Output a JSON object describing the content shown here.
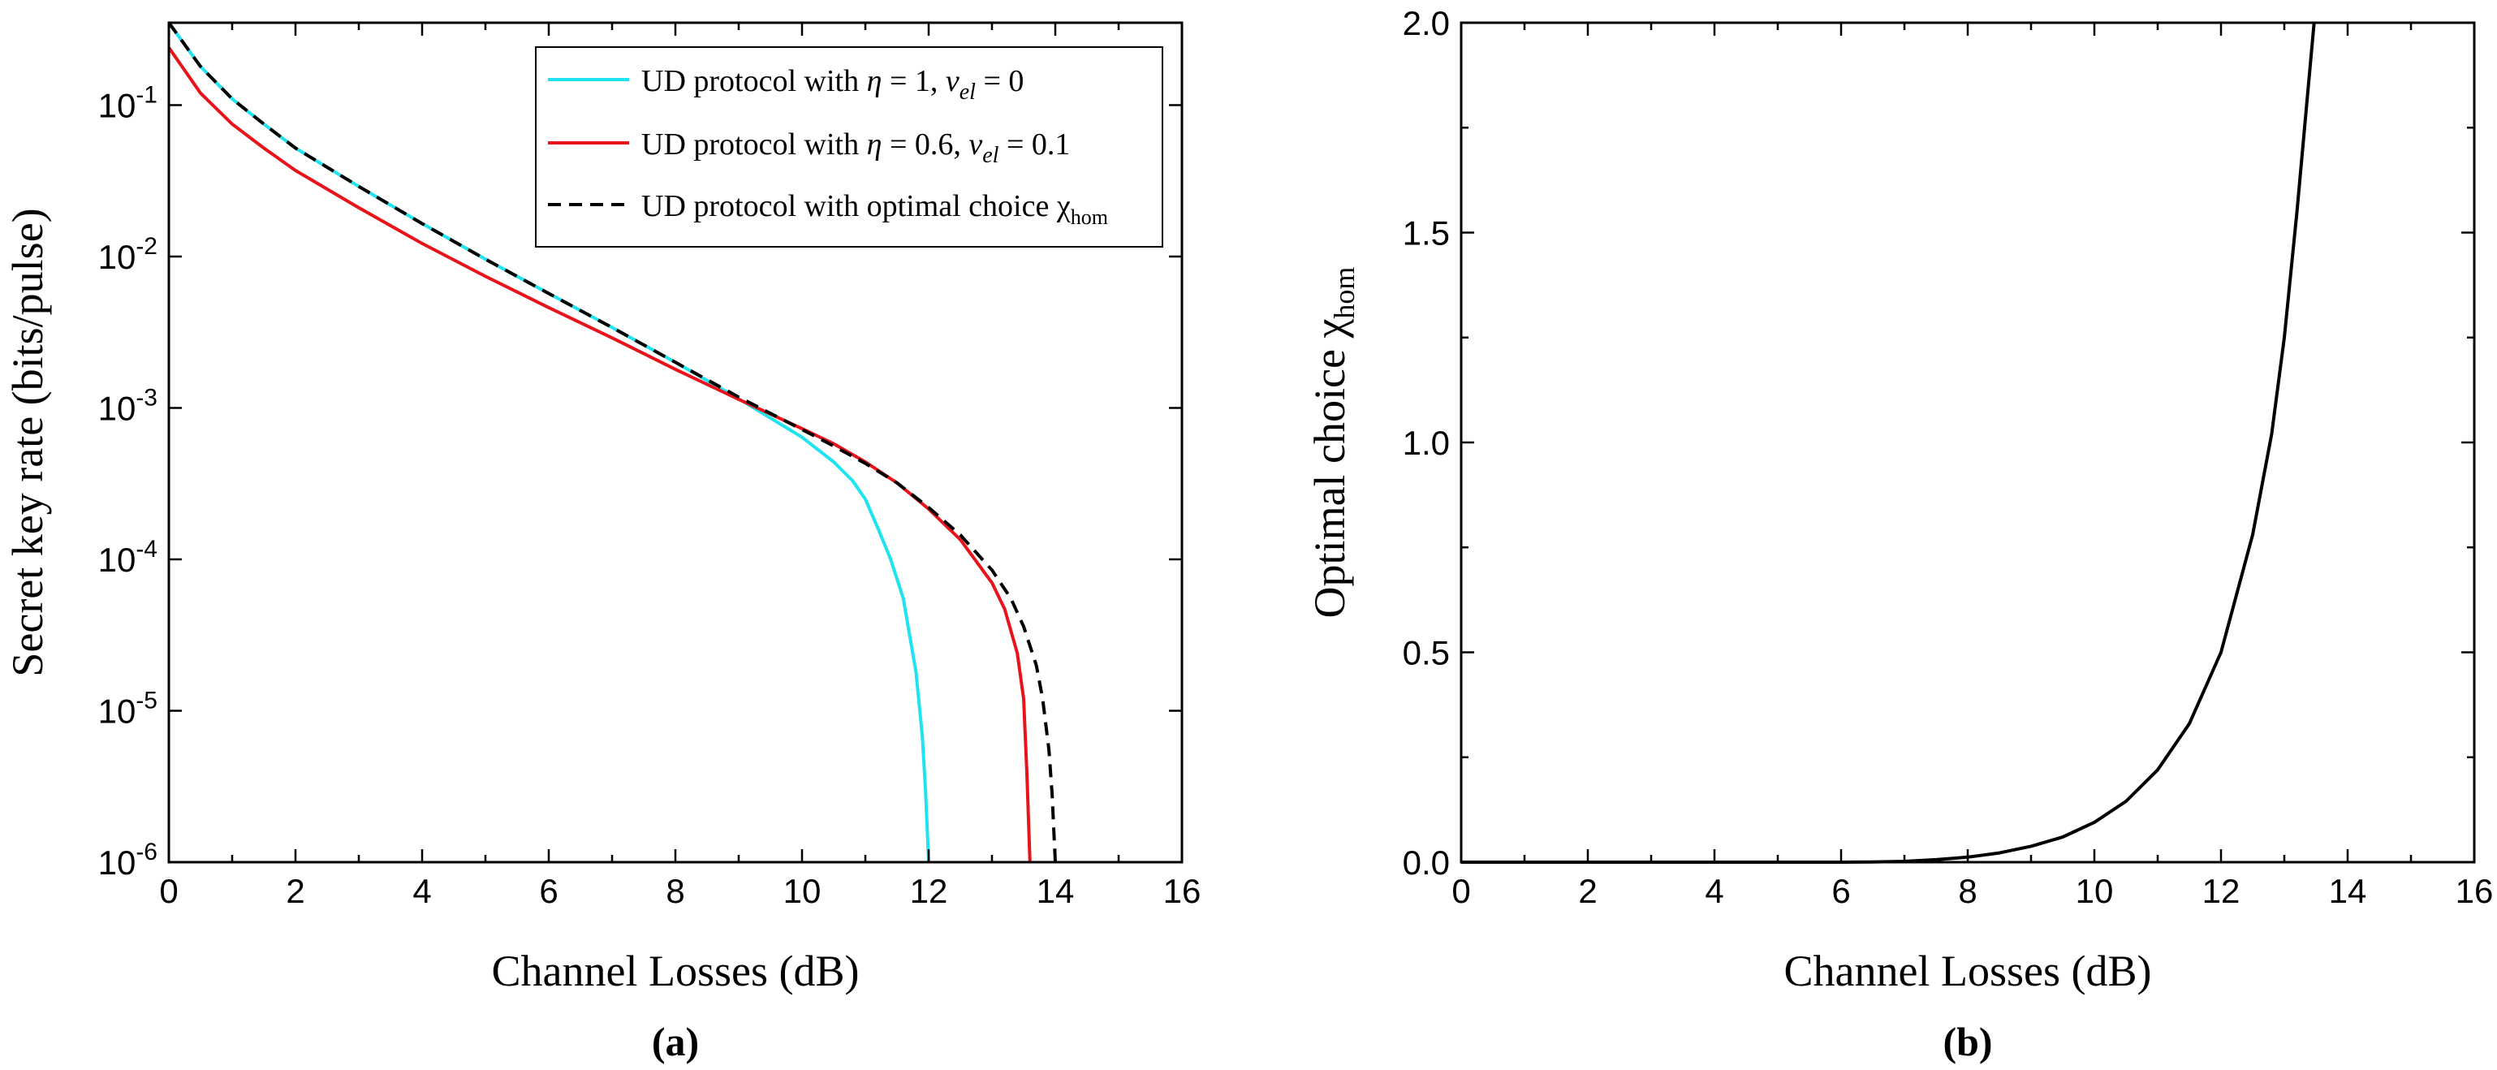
{
  "chart_data": [
    {
      "type": "line",
      "panel_label": "(a)",
      "xlabel": "Channel Losses (dB)",
      "ylabel": "Secret key rate (bits/pulse)",
      "xlim": [
        0,
        16
      ],
      "ylim": [
        1e-06,
        0.35
      ],
      "yscale": "log",
      "xticks": [
        0,
        2,
        4,
        6,
        8,
        10,
        12,
        14,
        16
      ],
      "xtick_labels": [
        "0",
        "2",
        "4",
        "6",
        "8",
        "10",
        "12",
        "14",
        "16"
      ],
      "yticks": [
        1e-06,
        1e-05,
        0.0001,
        0.001,
        0.01,
        0.1
      ],
      "ytick_labels": [
        {
          "base": "10",
          "exp": "-6"
        },
        {
          "base": "10",
          "exp": "-5"
        },
        {
          "base": "10",
          "exp": "-4"
        },
        {
          "base": "10",
          "exp": "-3"
        },
        {
          "base": "10",
          "exp": "-2"
        },
        {
          "base": "10",
          "exp": "-1"
        }
      ],
      "legend_position": "top-right",
      "series": [
        {
          "name": "UD protocol with η = 1, νel = 0",
          "legend_parts": {
            "prefix": "UD protocol with ",
            "sym1": "η",
            "mid1": " = 1,  ",
            "sym2": "ν",
            "sub2": "el",
            "suffix": " = 0"
          },
          "color": "#1fe3ee",
          "dash": "solid",
          "x": [
            0,
            0.5,
            1,
            1.5,
            2,
            3,
            4,
            5,
            6,
            7,
            8,
            9,
            10,
            10.5,
            10.8,
            11,
            11.2,
            11.4,
            11.6,
            11.8,
            11.9,
            11.95,
            12.0
          ],
          "y": [
            0.35,
            0.18,
            0.11,
            0.075,
            0.052,
            0.029,
            0.0165,
            0.0096,
            0.0057,
            0.0034,
            0.002,
            0.00115,
            0.00064,
            0.00044,
            0.00033,
            0.00025,
            0.00016,
            0.0001,
            5.5e-05,
            1.8e-05,
            6.8e-06,
            3e-06,
            1e-06
          ]
        },
        {
          "name": "UD protocol with η = 0.6, νel = 0.1",
          "legend_parts": {
            "prefix": "UD protocol with ",
            "sym1": "η",
            "mid1": " = 0.6,  ",
            "sym2": "ν",
            "sub2": "el",
            "suffix": " = 0.1"
          },
          "color": "#e8141c",
          "dash": "solid",
          "x": [
            0,
            0.5,
            1,
            1.5,
            2,
            3,
            4,
            5,
            6,
            7,
            8,
            9,
            10,
            10.5,
            11,
            11.5,
            12,
            12.5,
            13,
            13.2,
            13.4,
            13.5,
            13.55,
            13.6
          ],
          "y": [
            0.24,
            0.12,
            0.075,
            0.052,
            0.037,
            0.021,
            0.0122,
            0.0074,
            0.0046,
            0.0029,
            0.0018,
            0.00114,
            0.00073,
            0.00058,
            0.00044,
            0.00032,
            0.000215,
            0.000135,
            7e-05,
            4.7e-05,
            2.4e-05,
            1.2e-05,
            4e-06,
            1e-06
          ]
        },
        {
          "name": "UD protocol with optimal choice χhom",
          "legend_parts": {
            "prefix": "UD protocol with optimal choice ",
            "sym1": "χ",
            "sub1": "hom"
          },
          "color": "#000000",
          "dash": "dashed",
          "x": [
            0,
            0.5,
            1,
            1.5,
            2,
            3,
            4,
            5,
            6,
            7,
            8,
            9,
            10,
            10.5,
            11,
            11.5,
            12,
            12.5,
            13,
            13.3,
            13.5,
            13.7,
            13.8,
            13.9,
            13.95,
            14.0
          ],
          "y": [
            0.35,
            0.18,
            0.11,
            0.075,
            0.052,
            0.029,
            0.0165,
            0.0096,
            0.0057,
            0.0034,
            0.002,
            0.00118,
            0.00072,
            0.00056,
            0.00043,
            0.00032,
            0.00022,
            0.000145,
            8.5e-05,
            5.5e-05,
            3.6e-05,
            2e-05,
            1.2e-05,
            5.5e-06,
            2.8e-06,
            1e-06
          ]
        }
      ]
    },
    {
      "type": "line",
      "panel_label": "(b)",
      "xlabel": "Channel Losses (dB)",
      "ylabel_prefix": "Optimal choice χ",
      "ylabel_sub": "hom",
      "xlim": [
        0,
        16
      ],
      "ylim": [
        0,
        2.0
      ],
      "yscale": "linear",
      "xticks": [
        0,
        2,
        4,
        6,
        8,
        10,
        12,
        14,
        16
      ],
      "xtick_labels": [
        "0",
        "2",
        "4",
        "6",
        "8",
        "10",
        "12",
        "14",
        "16"
      ],
      "yticks": [
        0,
        0.5,
        1.0,
        1.5,
        2.0
      ],
      "ytick_labels": [
        "0.0",
        "0.5",
        "1.0",
        "1.5",
        "2.0"
      ],
      "series": [
        {
          "name": "Optimal choice χhom",
          "color": "#000000",
          "dash": "solid",
          "x": [
            0,
            2,
            4,
            6,
            6.5,
            7,
            7.5,
            8,
            8.5,
            9,
            9.5,
            10,
            10.5,
            11,
            11.5,
            12,
            12.5,
            12.8,
            13.0,
            13.2,
            13.35,
            13.47
          ],
          "y": [
            0,
            0,
            0,
            0,
            0.0005,
            0.002,
            0.006,
            0.012,
            0.022,
            0.038,
            0.06,
            0.095,
            0.145,
            0.22,
            0.33,
            0.5,
            0.78,
            1.02,
            1.25,
            1.55,
            1.8,
            2.0
          ]
        }
      ]
    }
  ]
}
